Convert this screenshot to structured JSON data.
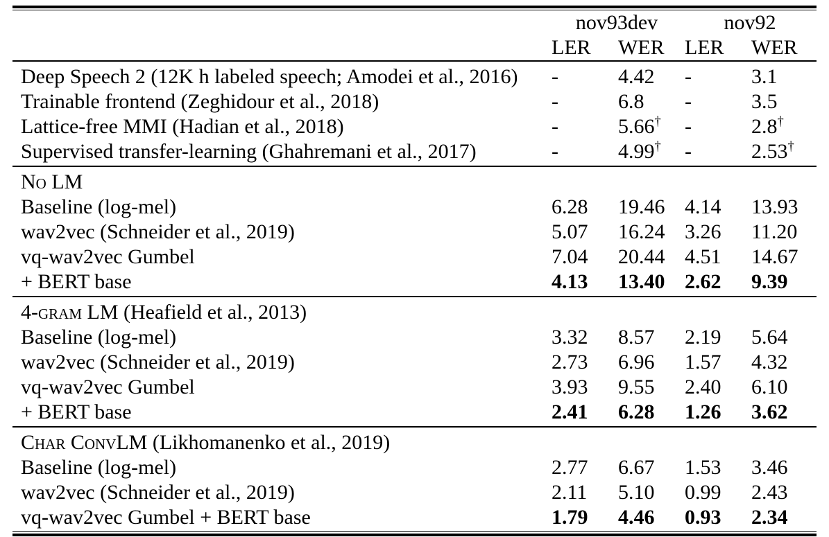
{
  "colors": {
    "background": "#ffffff",
    "text": "#000000",
    "rule": "#000000"
  },
  "table": {
    "column_groups": [
      {
        "label": "nov93dev",
        "columns": [
          "LER",
          "WER"
        ]
      },
      {
        "label": "nov92",
        "columns": [
          "LER",
          "WER"
        ]
      }
    ],
    "subheaders": [
      "LER",
      "WER",
      "LER",
      "WER"
    ],
    "footnote_marker": "†",
    "sections": [
      {
        "rows": [
          {
            "label": "Deep Speech 2 (12K h labeled speech; Amodei et al., 2016)",
            "cells": [
              "-",
              "4.42",
              "-",
              "3.1"
            ],
            "bold": false
          },
          {
            "label": "Trainable frontend (Zeghidour et al., 2018)",
            "cells": [
              "-",
              "6.8",
              "-",
              "3.5"
            ],
            "bold": false
          },
          {
            "label": "Lattice-free MMI (Hadian et al., 2018)",
            "cells": [
              "-",
              "5.66†",
              "-",
              "2.8†"
            ],
            "bold": false
          },
          {
            "label": "Supervised transfer-learning (Ghahremani et al., 2017)",
            "cells": [
              "-",
              "4.99†",
              "-",
              "2.53†"
            ],
            "bold": false
          }
        ]
      },
      {
        "title_smallcaps": "No LM",
        "title_rest": "",
        "rows": [
          {
            "label": "Baseline (log-mel)",
            "cells": [
              "6.28",
              "19.46",
              "4.14",
              "13.93"
            ],
            "bold": false
          },
          {
            "label": "wav2vec (Schneider et al., 2019)",
            "cells": [
              "5.07",
              "16.24",
              "3.26",
              "11.20"
            ],
            "bold": false
          },
          {
            "label": "vq-wav2vec Gumbel",
            "cells": [
              "7.04",
              "20.44",
              "4.51",
              "14.67"
            ],
            "bold": false
          },
          {
            "label": "+ BERT base",
            "cells": [
              "4.13",
              "13.40",
              "2.62",
              "9.39"
            ],
            "bold": true
          }
        ]
      },
      {
        "title_smallcaps": "4-gram LM",
        "title_rest": " (Heafield et al., 2013)",
        "rows": [
          {
            "label": "Baseline (log-mel)",
            "cells": [
              "3.32",
              "8.57",
              "2.19",
              "5.64"
            ],
            "bold": false
          },
          {
            "label": "wav2vec (Schneider et al., 2019)",
            "cells": [
              "2.73",
              "6.96",
              "1.57",
              "4.32"
            ],
            "bold": false
          },
          {
            "label": "vq-wav2vec Gumbel",
            "cells": [
              "3.93",
              "9.55",
              "2.40",
              "6.10"
            ],
            "bold": false
          },
          {
            "label": "+ BERT base",
            "cells": [
              "2.41",
              "6.28",
              "1.26",
              "3.62"
            ],
            "bold": true
          }
        ]
      },
      {
        "title_smallcaps": "Char ConvLM",
        "title_rest": " (Likhomanenko et al., 2019)",
        "rows": [
          {
            "label": "Baseline (log-mel)",
            "cells": [
              "2.77",
              "6.67",
              "1.53",
              "3.46"
            ],
            "bold": false
          },
          {
            "label": "wav2vec (Schneider et al., 2019)",
            "cells": [
              "2.11",
              "5.10",
              "0.99",
              "2.43"
            ],
            "bold": false
          },
          {
            "label": "vq-wav2vec Gumbel + BERT base",
            "cells": [
              "1.79",
              "4.46",
              "0.93",
              "2.34"
            ],
            "bold": true
          }
        ]
      }
    ]
  }
}
